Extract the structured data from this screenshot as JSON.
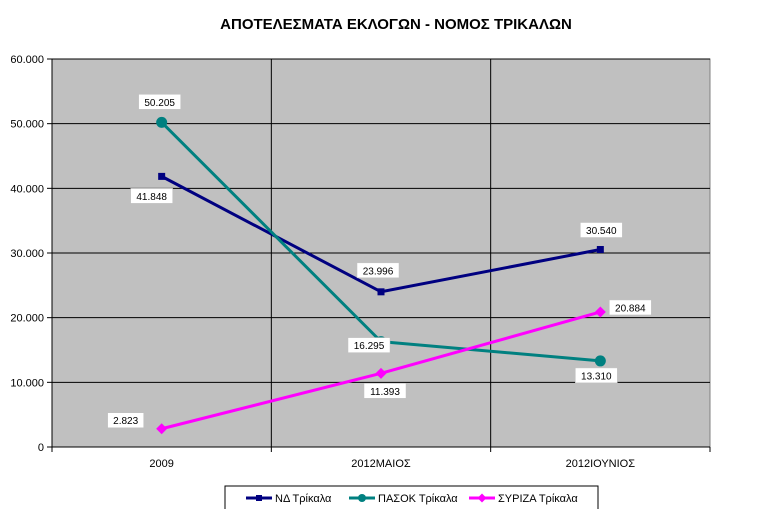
{
  "chart_data": {
    "type": "line",
    "title": "ΑΠΟΤΕΛΕΣΜΑΤΑ ΕΚΛΟΓΩΝ - ΝΟΜΟΣ ΤΡΙΚΑΛΩΝ",
    "categories": [
      "2009",
      "2012ΜΑΙΟΣ",
      "2012ΙΟΥΝΙΟΣ"
    ],
    "ylim": [
      0,
      60000
    ],
    "yticks": [
      0,
      10000,
      20000,
      30000,
      40000,
      50000,
      60000
    ],
    "ytick_labels": [
      "0",
      "10.000",
      "20.000",
      "30.000",
      "40.000",
      "50.000",
      "60.000"
    ],
    "grid": true,
    "legend_position": "bottom",
    "plot_background": "#c0c0c0",
    "series": [
      {
        "name": "ΝΔ Τρίκαλα",
        "color": "#000080",
        "marker": "square",
        "values": [
          41848,
          23996,
          30540
        ],
        "labels": [
          "41.848",
          "23.996",
          "30.540"
        ]
      },
      {
        "name": "ΠΑΣΟΚ Τρίκαλα",
        "color": "#008080",
        "marker": "circle",
        "values": [
          50205,
          16295,
          13310
        ],
        "labels": [
          "50.205",
          "16.295",
          "13.310"
        ]
      },
      {
        "name": "ΣΥΡΙΖΑ Τρίκαλα",
        "color": "#ff00ff",
        "marker": "diamond",
        "values": [
          2823,
          11393,
          20884
        ],
        "labels": [
          "2.823",
          "11.393",
          "20.884"
        ]
      }
    ]
  }
}
